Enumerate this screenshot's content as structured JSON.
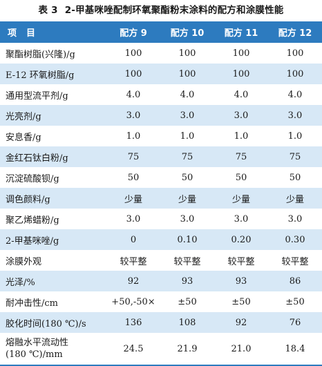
{
  "caption": {
    "number": "表 3",
    "title": "2-甲基咪唑配制环氧聚酯粉末涂料的配方和涂膜性能"
  },
  "table": {
    "headers": [
      "项目",
      "配方 9",
      "配方 10",
      "配方 11",
      "配方 12"
    ],
    "rows": [
      {
        "label": "聚酯树脂(兴隆)/g",
        "values": [
          "100",
          "100",
          "100",
          "100"
        ]
      },
      {
        "label": "E-12 环氧树脂/g",
        "values": [
          "100",
          "100",
          "100",
          "100"
        ]
      },
      {
        "label": "通用型流平剂/g",
        "values": [
          "4.0",
          "4.0",
          "4.0",
          "4.0"
        ]
      },
      {
        "label": "光亮剂/g",
        "values": [
          "3.0",
          "3.0",
          "3.0",
          "3.0"
        ]
      },
      {
        "label": "安息香/g",
        "values": [
          "1.0",
          "1.0",
          "1.0",
          "1.0"
        ]
      },
      {
        "label": "金红石钛白粉/g",
        "values": [
          "75",
          "75",
          "75",
          "75"
        ]
      },
      {
        "label": "沉淀硫酸钡/g",
        "values": [
          "50",
          "50",
          "50",
          "50"
        ]
      },
      {
        "label": "调色颜料/g",
        "values": [
          "少量",
          "少量",
          "少量",
          "少量"
        ]
      },
      {
        "label": "聚乙烯蜡粉/g",
        "values": [
          "3.0",
          "3.0",
          "3.0",
          "3.0"
        ]
      },
      {
        "label": "2-甲基咪唑/g",
        "values": [
          "0",
          "0.10",
          "0.20",
          "0.30"
        ]
      },
      {
        "label": "涂膜外观",
        "values": [
          "较平整",
          "较平整",
          "较平整",
          "较平整"
        ]
      },
      {
        "label": "光泽/%",
        "values": [
          "92",
          "93",
          "93",
          "86"
        ]
      },
      {
        "label": "耐冲击性/cm",
        "values": [
          "+50,-50×",
          "±50",
          "±50",
          "±50"
        ]
      },
      {
        "label": "胶化时间(180 ℃)/s",
        "values": [
          "136",
          "108",
          "92",
          "76"
        ]
      },
      {
        "label_line1": "熔融水平流动性",
        "label_line2": "(180 ℃)/mm",
        "values": [
          "24.5",
          "21.9",
          "21.0",
          "18.4"
        ]
      }
    ]
  },
  "colors": {
    "header_bg": "#2d7bbf",
    "row_alt_bg": "#d7e8f6"
  }
}
